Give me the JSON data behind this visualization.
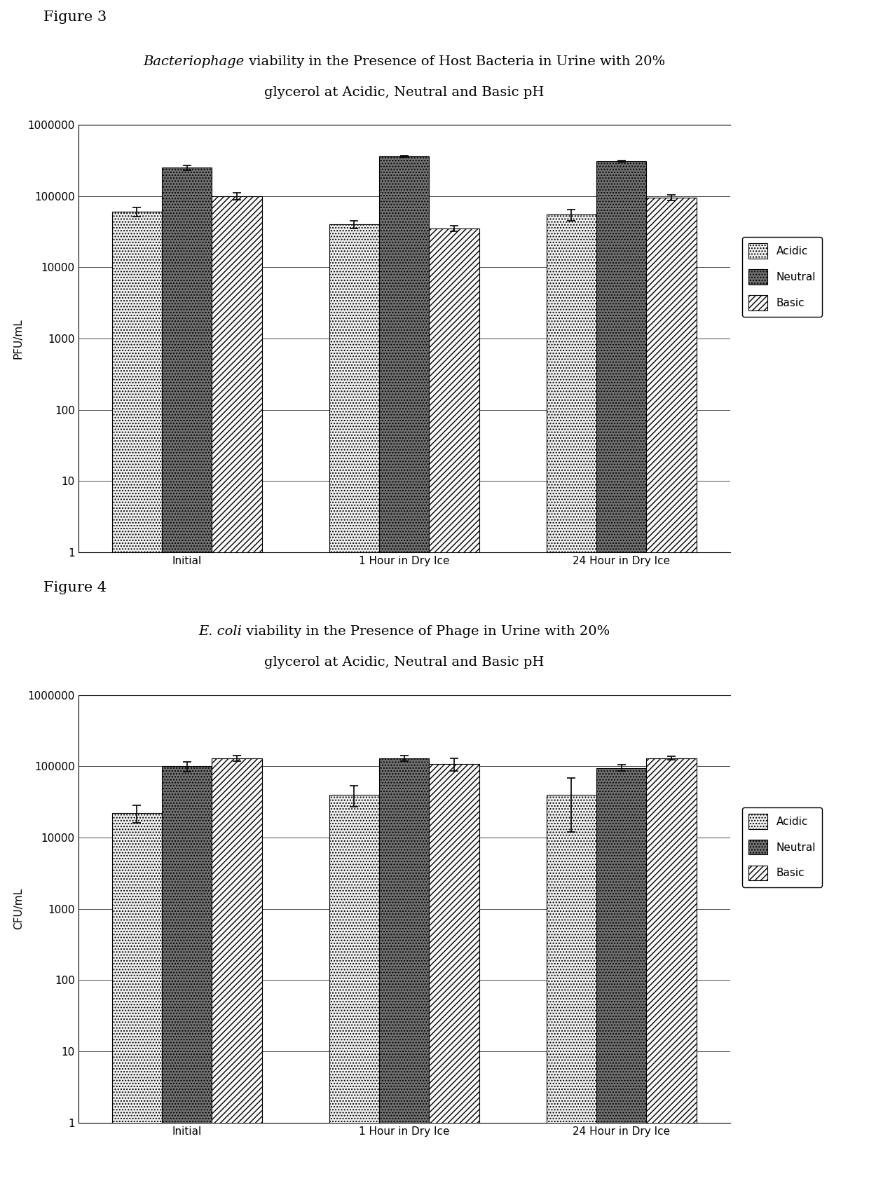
{
  "fig3": {
    "title_italic": "Bacteriophage",
    "title_line1_rest": " viability in the Presence of Host Bacteria in Urine with 20%",
    "title_line2": "glycerol at Acidic, Neutral and Basic pH",
    "ylabel": "PFU/mL",
    "groups": [
      "Initial",
      "1 Hour in Dry Ice",
      "24 Hour in Dry Ice"
    ],
    "values": {
      "Acidic": [
        60000,
        40000,
        55000
      ],
      "Neutral": [
        250000,
        360000,
        310000
      ],
      "Basic": [
        100000,
        35000,
        95000
      ]
    },
    "errors": {
      "Acidic": [
        9000,
        5000,
        10000
      ],
      "Neutral": [
        18000,
        6000,
        8000
      ],
      "Basic": [
        12000,
        3000,
        8000
      ]
    },
    "figure_label": "Figure 3"
  },
  "fig4": {
    "title_italic": "E. coli",
    "title_line1_rest": " viability in the Presence of Phage in Urine with 20%",
    "title_line2": "glycerol at Acidic, Neutral and Basic pH",
    "ylabel": "CFU/mL",
    "groups": [
      "Initial",
      "1 Hour in Dry Ice",
      "24 Hour in Dry Ice"
    ],
    "values": {
      "Acidic": [
        22000,
        40000,
        40000
      ],
      "Neutral": [
        100000,
        130000,
        95000
      ],
      "Basic": [
        130000,
        108000,
        130000
      ]
    },
    "errors": {
      "Acidic": [
        6000,
        13000,
        28000
      ],
      "Neutral": [
        16000,
        12000,
        10000
      ],
      "Basic": [
        12000,
        22000,
        8000
      ]
    },
    "figure_label": "Figure 4"
  },
  "series": [
    "Acidic",
    "Neutral",
    "Basic"
  ],
  "bar_colors": {
    "Acidic": "#f0f0f0",
    "Neutral": "#707070",
    "Basic": "#f8f8f8"
  },
  "bar_hatches": {
    "Acidic": "....",
    "Neutral": "....",
    "Basic": "////"
  },
  "bar_hatch_colors": {
    "Acidic": "black",
    "Neutral": "black",
    "Basic": "black"
  },
  "ylim": [
    1,
    1000000
  ],
  "ytick_vals": [
    1,
    10,
    100,
    1000,
    10000,
    100000,
    1000000
  ],
  "ytick_labels": [
    "1",
    "10",
    "100",
    "1000",
    "10000",
    "100000",
    "1000000"
  ],
  "bar_width": 0.23,
  "title_fontsize": 14,
  "label_fontsize": 11,
  "tick_fontsize": 11,
  "legend_fontsize": 11,
  "figure_label_fontsize": 15
}
